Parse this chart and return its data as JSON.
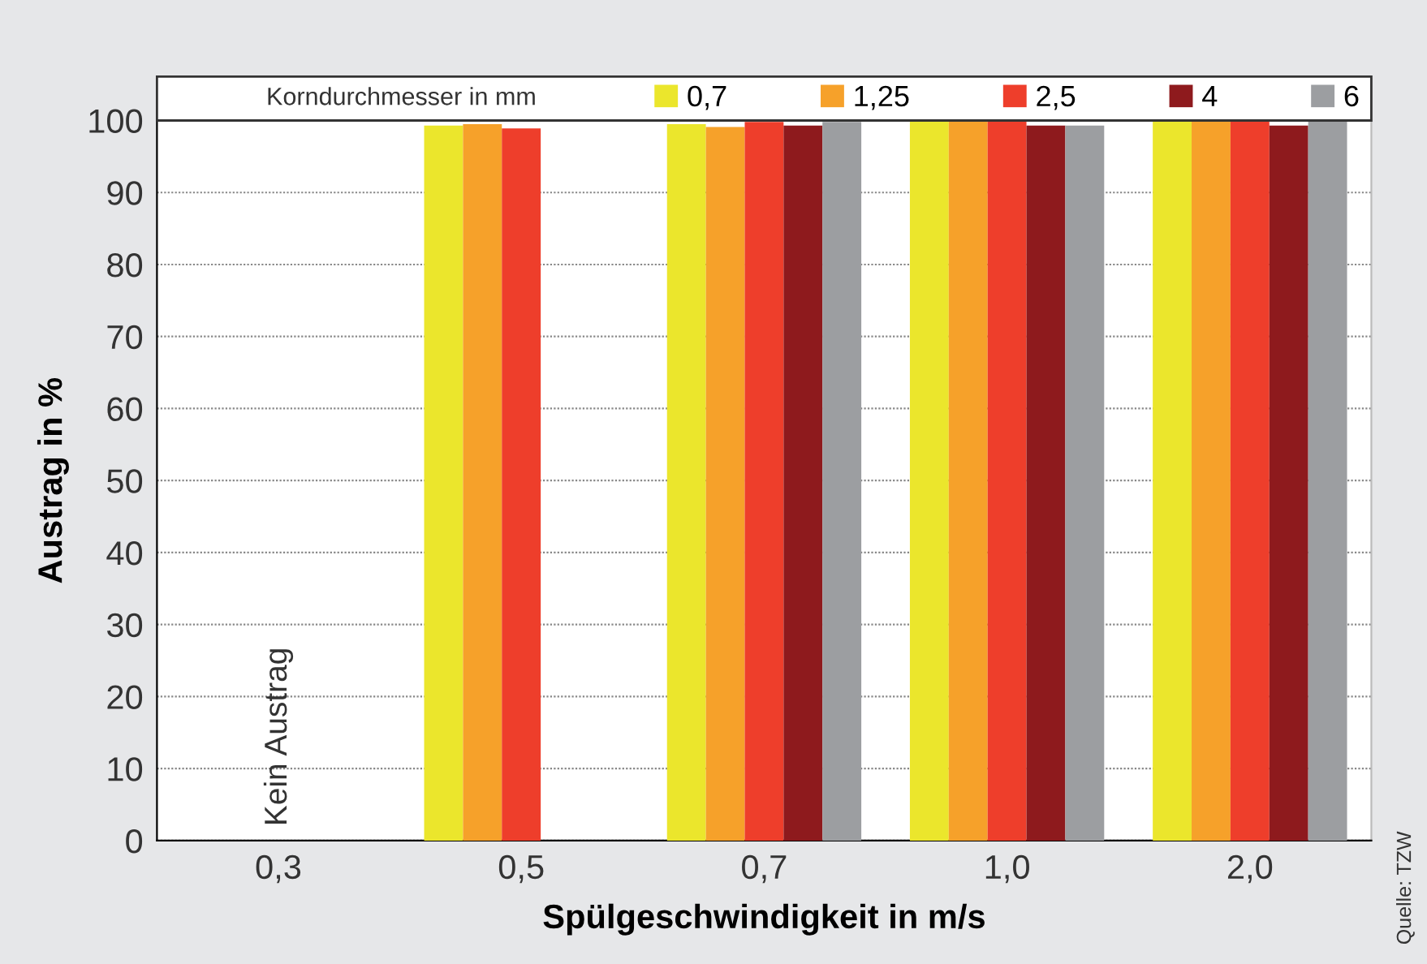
{
  "chart_data": {
    "type": "bar",
    "xlabel": "Spülgeschwindigkeit in m/s",
    "ylabel": "Austrag in %",
    "legend_title": "Korndurchmesser in mm",
    "categories": [
      "0,3",
      "0,5",
      "0,7",
      "1,0",
      "2,0"
    ],
    "series": [
      {
        "name": "0,7",
        "color": "#ebe62c",
        "values": [
          null,
          99.3,
          99.5,
          100,
          100
        ]
      },
      {
        "name": "1,25",
        "color": "#f6a12a",
        "values": [
          null,
          99.5,
          99.1,
          100,
          100
        ]
      },
      {
        "name": "2,5",
        "color": "#ee3e2b",
        "values": [
          null,
          98.9,
          99.8,
          100,
          100
        ]
      },
      {
        "name": "4",
        "color": "#8e1a1d",
        "values": [
          null,
          null,
          99.3,
          99.3,
          99.3
        ]
      },
      {
        "name": "6",
        "color": "#9c9ea1",
        "values": [
          null,
          null,
          99.8,
          99.3,
          100
        ]
      }
    ],
    "ylim": [
      0,
      100
    ],
    "yticks": [
      0,
      10,
      20,
      30,
      40,
      50,
      60,
      70,
      80,
      90,
      100
    ],
    "grid": "y",
    "legend": "top",
    "annotations": [
      "Kein Austrag",
      "Quelle: TZW"
    ]
  }
}
